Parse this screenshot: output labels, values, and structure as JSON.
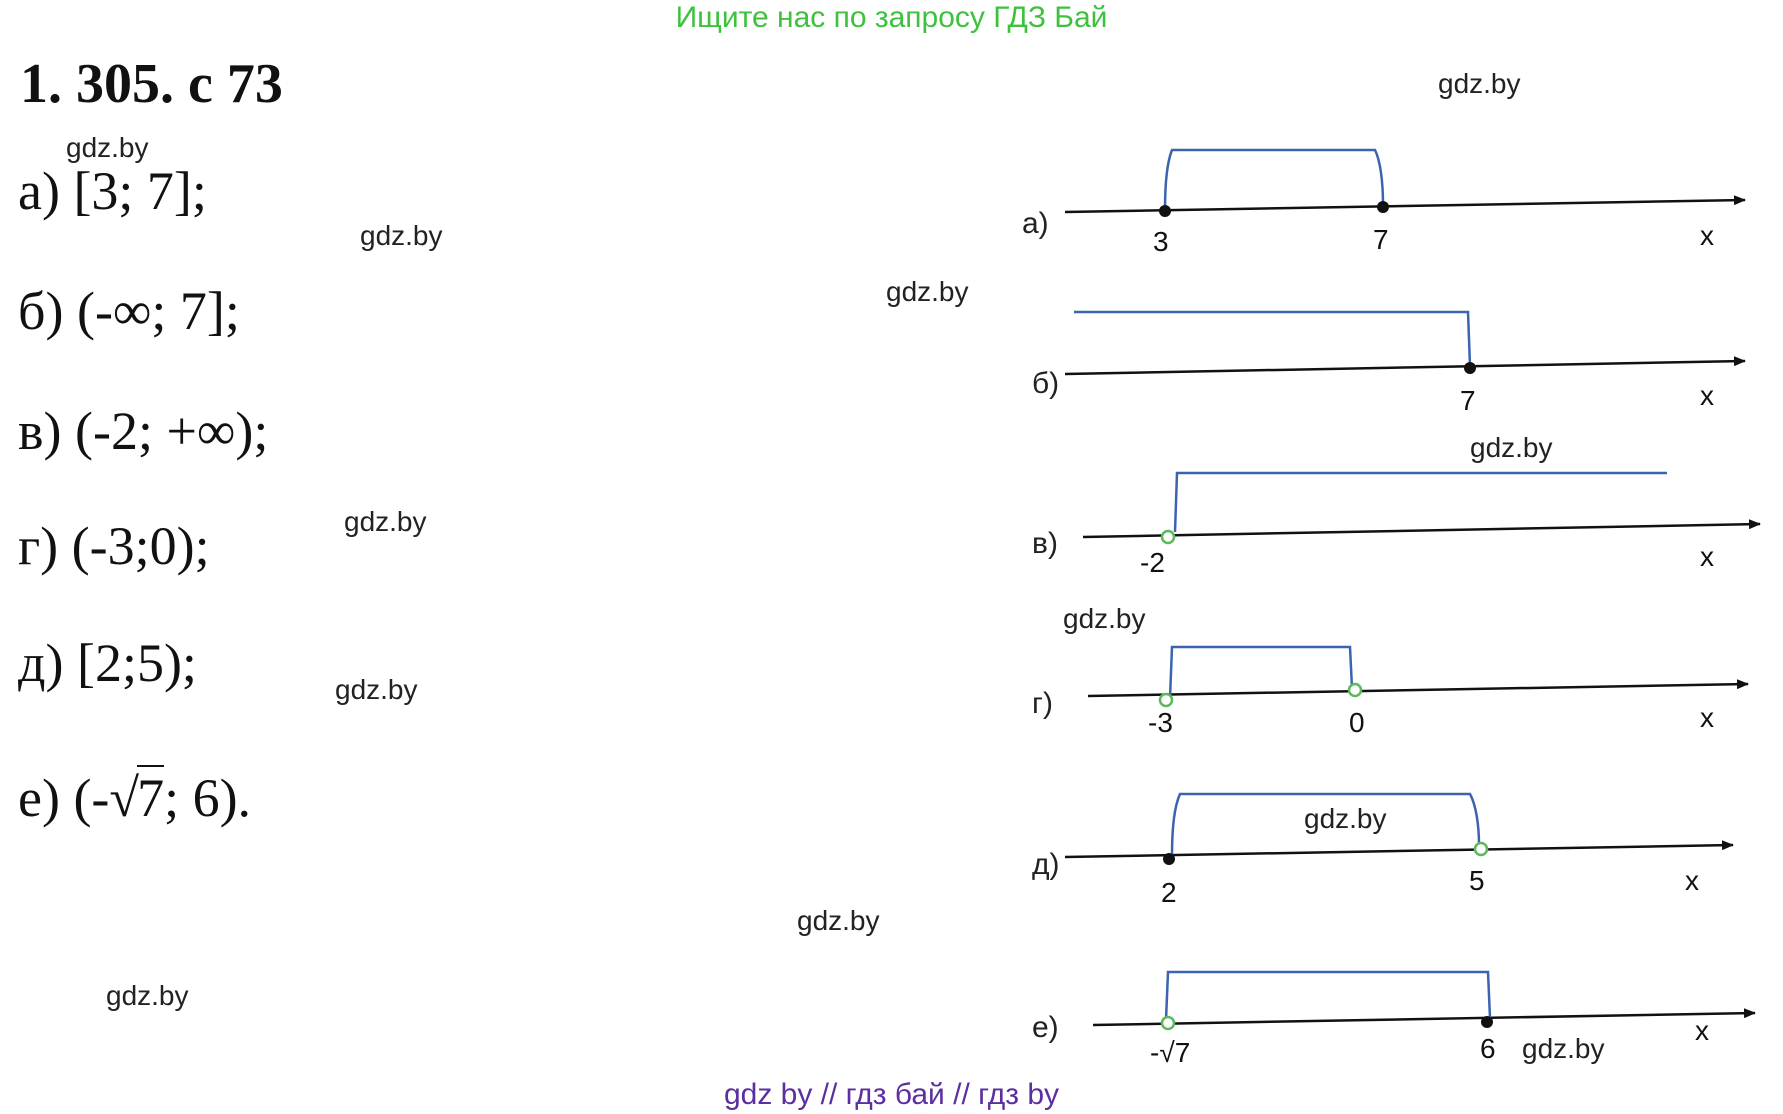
{
  "header": {
    "banner": "Ищите нас по запросу ГДЗ Бай",
    "title": "1. 305. с 73"
  },
  "answers": {
    "a": "а) [3; 7];",
    "b": "б) (-∞; 7];",
    "c": "в) (-2; +∞);",
    "d": "г) (-3;0);",
    "e": "д) [2;5);",
    "f_prefix": "е) (-√",
    "f_rad": "7",
    "f_suffix": "; 6)."
  },
  "watermarks": [
    "gdz.by",
    "gdz.by",
    "gdz.by",
    "gdz.by",
    "gdz.by",
    "gdz.by",
    "gdz.by",
    "gdz.by",
    "gdz.by",
    "gdz.by",
    "gdz.by"
  ],
  "footer": "gdz by  //  гдз бай  //  гдз by",
  "diagrams": [
    {
      "label": "а)",
      "axis": "x",
      "ticks": [
        "3",
        "7"
      ]
    },
    {
      "label": "б)",
      "axis": "x",
      "ticks": [
        "7"
      ]
    },
    {
      "label": "в)",
      "axis": "x",
      "ticks": [
        "-2"
      ]
    },
    {
      "label": "г)",
      "axis": "x",
      "ticks": [
        "-3",
        "0"
      ]
    },
    {
      "label": "д)",
      "axis": "x",
      "ticks": [
        "2",
        "5"
      ]
    },
    {
      "label": "е)",
      "axis": "x",
      "ticks": [
        "-√7",
        "6"
      ]
    }
  ]
}
